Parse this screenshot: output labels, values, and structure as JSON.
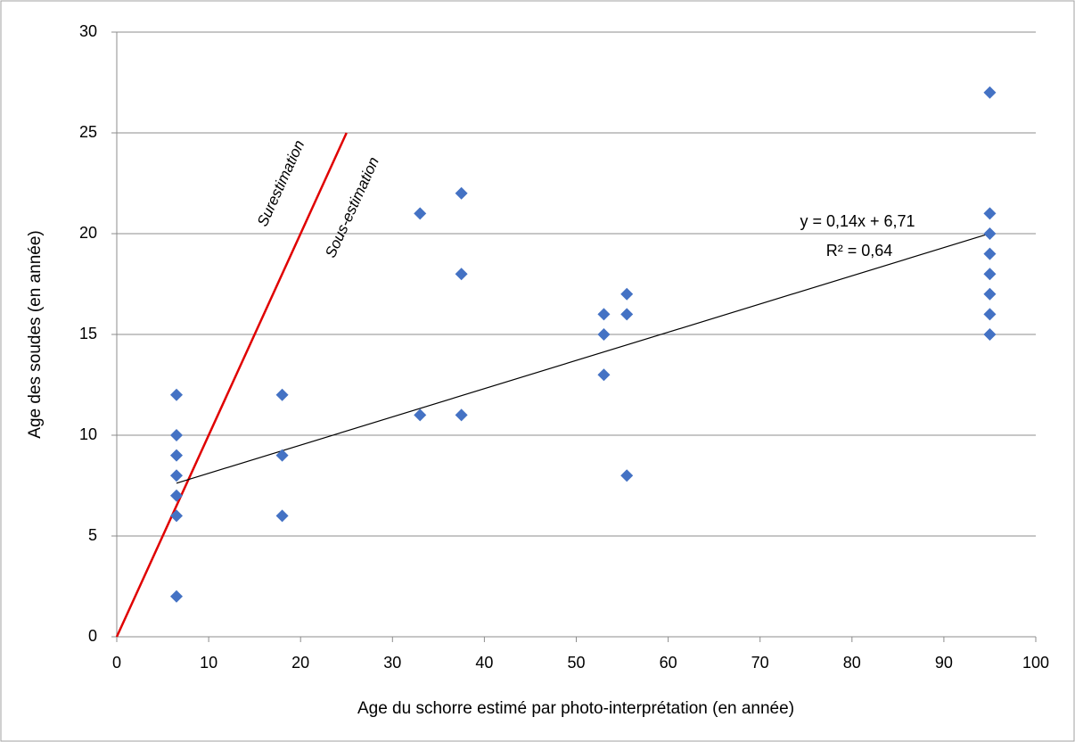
{
  "chart_data": {
    "type": "scatter",
    "x_label": "Age du schorre estimé par photo-interprétation (en année)",
    "y_label": "Age des soudes (en année)",
    "xlim": [
      0,
      100
    ],
    "xticks": [
      0,
      10,
      20,
      30,
      40,
      50,
      60,
      70,
      80,
      90,
      100
    ],
    "ylim": [
      0,
      30
    ],
    "yticks": [
      0,
      5,
      10,
      15,
      20,
      25,
      30
    ],
    "grid": true,
    "series": [
      {
        "color": "#4472c4",
        "x": [
          6.5,
          6.5,
          6.5,
          6.5,
          6.5,
          6.5,
          6.5,
          18,
          18,
          18,
          33,
          33,
          37.5,
          37.5,
          37.5,
          53,
          53,
          53,
          55.5,
          55.5,
          55.5,
          95,
          95,
          95,
          95,
          95,
          95,
          95,
          95
        ],
        "values": [
          12,
          10,
          9,
          8,
          7,
          6,
          2,
          12,
          9,
          6,
          21,
          11,
          22,
          18,
          11,
          16,
          15,
          13,
          17,
          16,
          8,
          27,
          21,
          20,
          19,
          18,
          17,
          16,
          15
        ]
      }
    ],
    "trendline": {
      "color": "#000000",
      "x": [
        6.5,
        95
      ],
      "values": [
        7.62,
        20.01
      ],
      "equation": "y = 0,14x + 6,71",
      "r2": "R² = 0,64"
    },
    "reference_line": {
      "color": "#e00000",
      "x": [
        0,
        25
      ],
      "values": [
        0,
        25
      ]
    },
    "annotations": [
      "Surestimation",
      "Sous-estimation"
    ]
  }
}
